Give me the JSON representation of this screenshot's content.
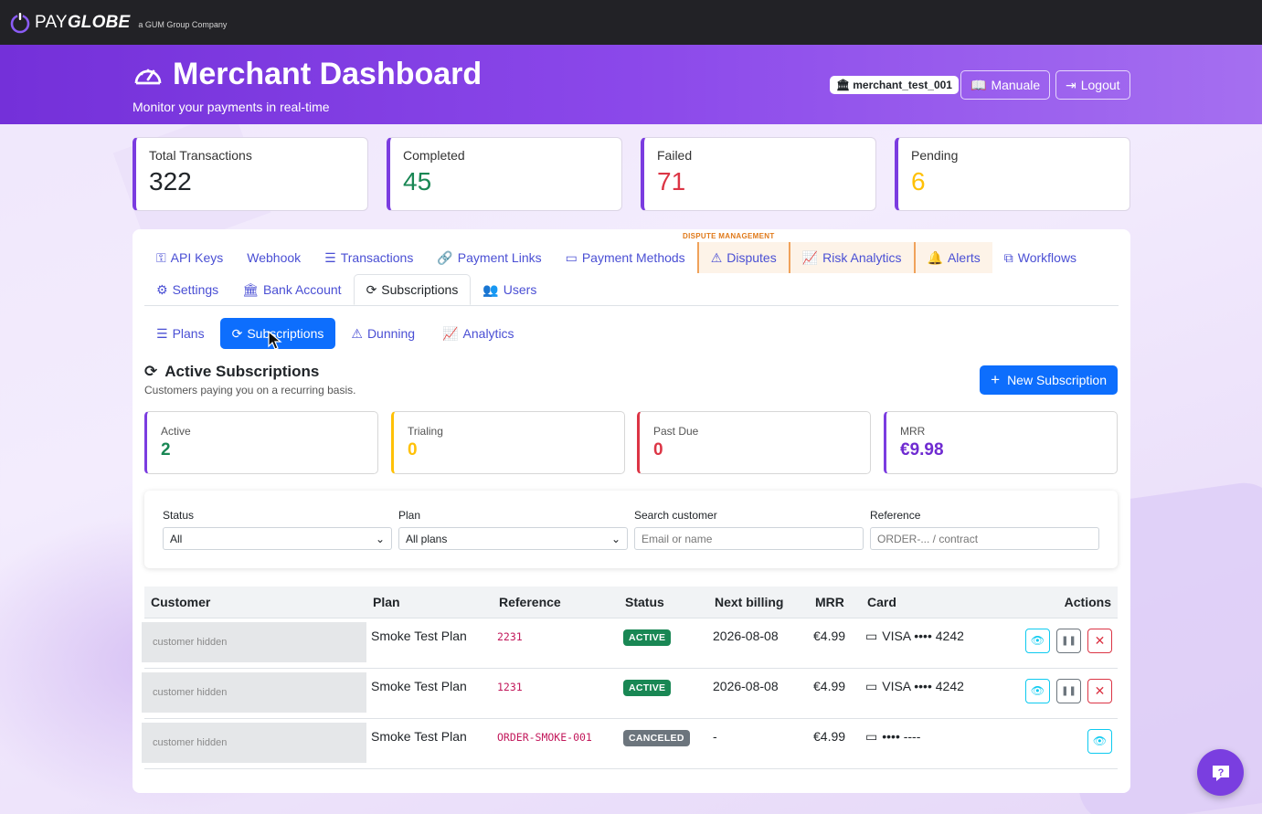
{
  "brand": {
    "name_plain": "PAY",
    "name_bold": "GLOBE",
    "tagline": "a GUM Group Company"
  },
  "header": {
    "title": "Merchant Dashboard",
    "subtitle": "Monitor your payments in real-time",
    "merchant_id": "merchant_test_001",
    "manual_label": "Manuale",
    "logout_label": "Logout"
  },
  "stats": [
    {
      "label": "Total Transactions",
      "value": "322",
      "color": "#212529"
    },
    {
      "label": "Completed",
      "value": "45",
      "color": "#198754"
    },
    {
      "label": "Failed",
      "value": "71",
      "color": "#dc3545"
    },
    {
      "label": "Pending",
      "value": "6",
      "color": "#ffc107"
    }
  ],
  "nav": {
    "dispute_tag": "DISPUTE MANAGEMENT",
    "row1": [
      {
        "label": "API Keys",
        "icon": "key-icon"
      },
      {
        "label": "Webhook",
        "icon": ""
      },
      {
        "label": "Transactions",
        "icon": "list-icon"
      },
      {
        "label": "Payment Links",
        "icon": "link-icon"
      },
      {
        "label": "Payment Methods",
        "icon": "card-icon"
      },
      {
        "label": "Disputes",
        "icon": "warning-icon"
      },
      {
        "label": "Risk Analytics",
        "icon": "chart-icon"
      },
      {
        "label": "Alerts",
        "icon": "bell-icon"
      },
      {
        "label": "Workflows",
        "icon": "workflow-icon"
      }
    ],
    "row2": [
      {
        "label": "Settings",
        "icon": "gear-icon"
      },
      {
        "label": "Bank Account",
        "icon": "bank-icon"
      },
      {
        "label": "Subscriptions",
        "icon": "refresh-icon"
      },
      {
        "label": "Users",
        "icon": "users-icon"
      }
    ]
  },
  "subnav": [
    {
      "label": "Plans",
      "icon": "list-icon"
    },
    {
      "label": "Subscriptions",
      "icon": "refresh-icon"
    },
    {
      "label": "Dunning",
      "icon": "warning-icon"
    },
    {
      "label": "Analytics",
      "icon": "chart-icon"
    }
  ],
  "section": {
    "title": "Active Subscriptions",
    "subtitle": "Customers paying you on a recurring basis.",
    "new_button": "New Subscription"
  },
  "metrics": [
    {
      "label": "Active",
      "value": "2",
      "color": "#198754",
      "accent": "#7b3ce0"
    },
    {
      "label": "Trialing",
      "value": "0",
      "color": "#ffc107",
      "accent": "#ffc107"
    },
    {
      "label": "Past Due",
      "value": "0",
      "color": "#dc3545",
      "accent": "#dc3545"
    },
    {
      "label": "MRR",
      "value": "€9.98",
      "color": "#6f2bd1",
      "accent": "#7b3ce0"
    }
  ],
  "filters": {
    "status_label": "Status",
    "status_value": "All",
    "plan_label": "Plan",
    "plan_value": "All plans",
    "search_label": "Search customer",
    "search_placeholder": "Email or name",
    "ref_label": "Reference",
    "ref_placeholder": "ORDER-... / contract"
  },
  "table": {
    "headers": [
      "Customer",
      "Plan",
      "Reference",
      "Status",
      "Next billing",
      "MRR",
      "Card",
      "Actions"
    ],
    "rows": [
      {
        "customer": "customer hidden",
        "plan": "Smoke Test Plan",
        "reference": "2231",
        "status": "ACTIVE",
        "next": "2026-08-08",
        "mrr": "€4.99",
        "card": "VISA •••• 4242"
      },
      {
        "customer": "customer hidden",
        "plan": "Smoke Test Plan",
        "reference": "1231",
        "status": "ACTIVE",
        "next": "2026-08-08",
        "mrr": "€4.99",
        "card": "VISA •••• 4242"
      },
      {
        "customer": "customer hidden",
        "plan": "Smoke Test Plan",
        "reference": "ORDER-SMOKE-001",
        "status": "CANCELED",
        "next": "-",
        "mrr": "€4.99",
        "card": "•••• ----"
      }
    ]
  }
}
